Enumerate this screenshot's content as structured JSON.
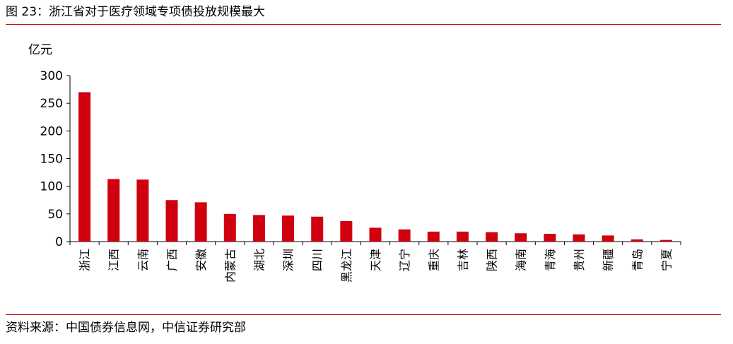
{
  "header": {
    "title": "图 23：浙江省对于医疗领域专项债投放规模最大"
  },
  "footer": {
    "source": "资料来源：中国债券信息网，中信证券研究部"
  },
  "chart_data": {
    "type": "bar",
    "unit_label": "亿元",
    "categories": [
      "浙江",
      "江西",
      "云南",
      "广西",
      "安徽",
      "内蒙古",
      "湖北",
      "深圳",
      "四川",
      "黑龙江",
      "天津",
      "辽宁",
      "重庆",
      "吉林",
      "陕西",
      "海南",
      "青海",
      "贵州",
      "新疆",
      "青岛",
      "宁夏"
    ],
    "values": [
      270,
      113,
      112,
      75,
      71,
      50,
      48,
      47,
      45,
      37,
      25,
      22,
      18,
      18,
      17,
      15,
      14,
      13,
      11,
      4,
      3
    ],
    "ylim": [
      0,
      300
    ],
    "yticks": [
      0,
      50,
      100,
      150,
      200,
      250,
      300
    ],
    "bar_color": "#d0000f",
    "grid": false,
    "legend": "none"
  }
}
